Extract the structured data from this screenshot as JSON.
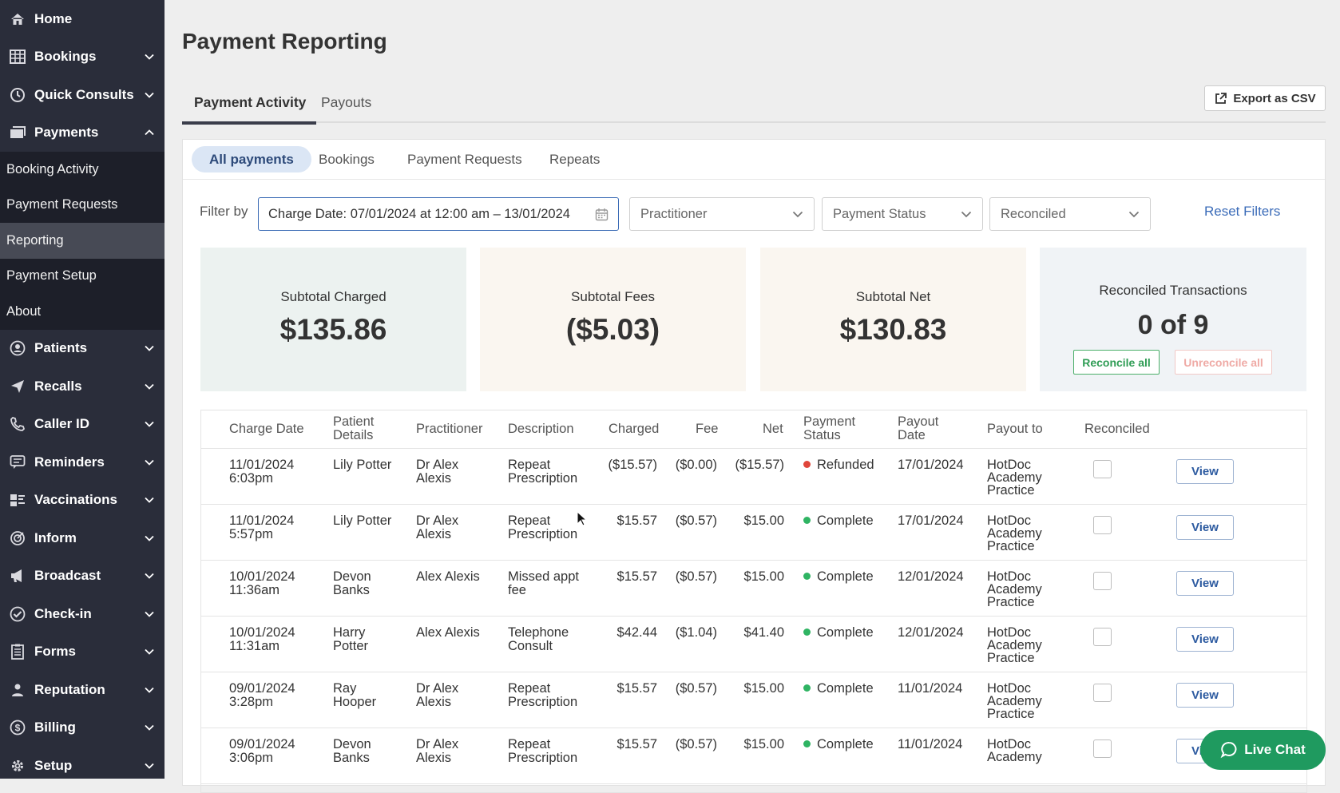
{
  "sidebar": {
    "items_top": [
      {
        "label": "Home",
        "icon": "home-icon",
        "chevron": "none"
      },
      {
        "label": "Bookings",
        "icon": "grid-icon",
        "chevron": "down"
      },
      {
        "label": "Quick Consults",
        "icon": "clock-icon",
        "chevron": "down"
      },
      {
        "label": "Payments",
        "icon": "payments-icon",
        "chevron": "up"
      }
    ],
    "payments_sub": [
      {
        "label": "Booking Activity"
      },
      {
        "label": "Payment Requests"
      },
      {
        "label": "Reporting",
        "active": true
      },
      {
        "label": "Payment Setup"
      },
      {
        "label": "About"
      }
    ],
    "items_bottom": [
      {
        "label": "Patients",
        "icon": "user-icon"
      },
      {
        "label": "Recalls",
        "icon": "send-icon"
      },
      {
        "label": "Caller ID",
        "icon": "phone-icon"
      },
      {
        "label": "Reminders",
        "icon": "chat-icon"
      },
      {
        "label": "Vaccinations",
        "icon": "vaccine-icon"
      },
      {
        "label": "Inform",
        "icon": "target-icon"
      },
      {
        "label": "Broadcast",
        "icon": "megaphone-icon"
      },
      {
        "label": "Check-in",
        "icon": "check-icon"
      },
      {
        "label": "Forms",
        "icon": "form-icon"
      },
      {
        "label": "Reputation",
        "icon": "person-icon"
      },
      {
        "label": "Billing",
        "icon": "dollar-icon"
      },
      {
        "label": "Setup",
        "icon": "gear-icon"
      }
    ]
  },
  "page": {
    "title": "Payment Reporting",
    "tabs": [
      "Payment Activity",
      "Payouts"
    ],
    "export_label": "Export as CSV"
  },
  "subtabs": [
    "All payments",
    "Bookings",
    "Payment Requests",
    "Repeats"
  ],
  "filters": {
    "label": "Filter by",
    "date": "Charge Date: 07/01/2024 at 12:00 am – 13/01/2024",
    "practitioner": "Practitioner",
    "payment_status": "Payment Status",
    "reconciled": "Reconciled",
    "reset": "Reset Filters"
  },
  "summary": {
    "charged_label": "Subtotal Charged",
    "charged_value": "$135.86",
    "fees_label": "Subtotal Fees",
    "fees_value": "($5.03)",
    "net_label": "Subtotal Net",
    "net_value": "$130.83",
    "reconciled_label": "Reconciled Transactions",
    "reconciled_value": "0 of 9",
    "reconcile_all": "Reconcile all",
    "unreconcile_all": "Unreconcile all"
  },
  "table": {
    "headers": {
      "charge_date": "Charge Date",
      "patient_1": "Patient",
      "patient_2": "Details",
      "practitioner": "Practitioner",
      "description": "Description",
      "charged": "Charged",
      "fee": "Fee",
      "net": "Net",
      "status_1": "Payment",
      "status_2": "Status",
      "payout_1": "Payout",
      "payout_2": "Date",
      "payout_to": "Payout to",
      "reconciled": "Reconciled"
    },
    "view_label": "View",
    "rows": [
      {
        "date1": "11/01/2024",
        "date2": "6:03pm",
        "patient1": "Lily Potter",
        "patient2": "",
        "prac1": "Dr Alex",
        "prac2": "Alexis",
        "desc1": "Repeat",
        "desc2": "Prescription",
        "charged": "($15.57)",
        "fee": "($0.00)",
        "net": "($15.57)",
        "status": "Refunded",
        "status_color": "#e0463b",
        "payout": "17/01/2024",
        "to1": "HotDoc",
        "to2": "Academy",
        "to3": "Practice"
      },
      {
        "date1": "11/01/2024",
        "date2": "5:57pm",
        "patient1": "Lily Potter",
        "patient2": "",
        "prac1": "Dr Alex",
        "prac2": "Alexis",
        "desc1": "Repeat",
        "desc2": "Prescription",
        "charged": "$15.57",
        "fee": "($0.57)",
        "net": "$15.00",
        "status": "Complete",
        "status_color": "#2fb463",
        "payout": "17/01/2024",
        "to1": "HotDoc",
        "to2": "Academy",
        "to3": "Practice"
      },
      {
        "date1": "10/01/2024",
        "date2": "11:36am",
        "patient1": "Devon",
        "patient2": "Banks",
        "prac1": "Alex Alexis",
        "prac2": "",
        "desc1": "Missed appt",
        "desc2": "fee",
        "charged": "$15.57",
        "fee": "($0.57)",
        "net": "$15.00",
        "status": "Complete",
        "status_color": "#2fb463",
        "payout": "12/01/2024",
        "to1": "HotDoc",
        "to2": "Academy",
        "to3": "Practice"
      },
      {
        "date1": "10/01/2024",
        "date2": "11:31am",
        "patient1": "Harry",
        "patient2": "Potter",
        "prac1": "Alex Alexis",
        "prac2": "",
        "desc1": "Telephone",
        "desc2": "Consult",
        "charged": "$42.44",
        "fee": "($1.04)",
        "net": "$41.40",
        "status": "Complete",
        "status_color": "#2fb463",
        "payout": "12/01/2024",
        "to1": "HotDoc",
        "to2": "Academy",
        "to3": "Practice"
      },
      {
        "date1": "09/01/2024",
        "date2": "3:28pm",
        "patient1": "Ray",
        "patient2": "Hooper",
        "prac1": "Dr Alex",
        "prac2": "Alexis",
        "desc1": "Repeat",
        "desc2": "Prescription",
        "charged": "$15.57",
        "fee": "($0.57)",
        "net": "$15.00",
        "status": "Complete",
        "status_color": "#2fb463",
        "payout": "11/01/2024",
        "to1": "HotDoc",
        "to2": "Academy",
        "to3": "Practice"
      },
      {
        "date1": "09/01/2024",
        "date2": "3:06pm",
        "patient1": "Devon",
        "patient2": "Banks",
        "prac1": "Dr Alex",
        "prac2": "Alexis",
        "desc1": "Repeat",
        "desc2": "Prescription",
        "charged": "$15.57",
        "fee": "($0.57)",
        "net": "$15.00",
        "status": "Complete",
        "status_color": "#2fb463",
        "payout": "11/01/2024",
        "to1": "HotDoc",
        "to2": "Academy",
        "to3": ""
      }
    ]
  },
  "live_chat": "Live Chat"
}
